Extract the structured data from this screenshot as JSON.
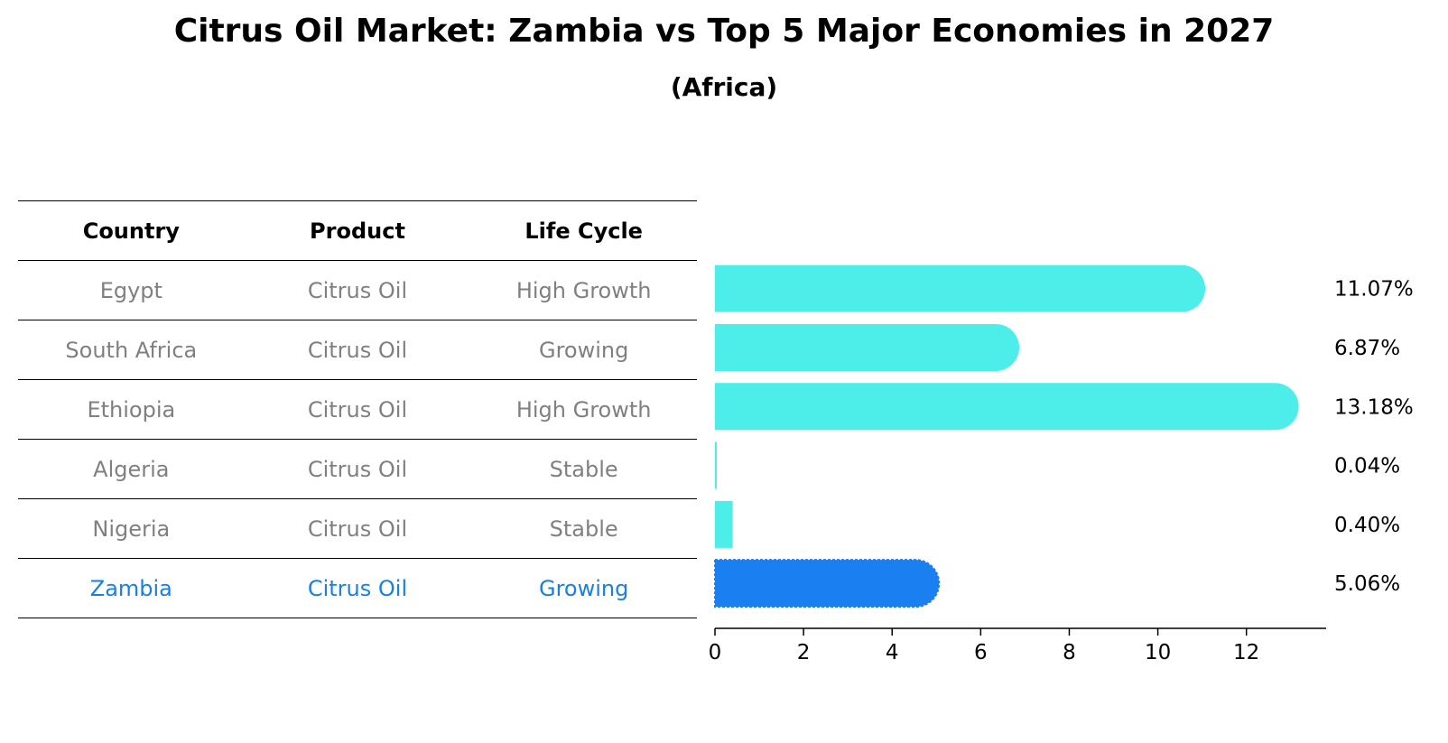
{
  "title": "Citrus Oil Market: Zambia vs Top 5 Major Economies in 2027",
  "subtitle": "(Africa)",
  "table": {
    "headers": [
      "Country",
      "Product",
      "Life Cycle"
    ],
    "rows": [
      {
        "country": "Egypt",
        "product": "Citrus Oil",
        "life_cycle": "High Growth",
        "highlight": false
      },
      {
        "country": "South Africa",
        "product": "Citrus Oil",
        "life_cycle": "Growing",
        "highlight": false
      },
      {
        "country": "Ethiopia",
        "product": "Citrus Oil",
        "life_cycle": "High Growth",
        "highlight": false
      },
      {
        "country": "Algeria",
        "product": "Citrus Oil",
        "life_cycle": "Stable",
        "highlight": false
      },
      {
        "country": "Nigeria",
        "product": "Citrus Oil",
        "life_cycle": "Stable",
        "highlight": false
      },
      {
        "country": "Zambia",
        "product": "Citrus Oil",
        "life_cycle": "Growing",
        "highlight": true
      }
    ]
  },
  "colors": {
    "bar": "#4deeea",
    "highlight": "#1a80f2",
    "highlight_text": "#1a80e0",
    "muted_text": "#808080"
  },
  "chart_data": {
    "type": "bar",
    "orientation": "horizontal",
    "categories": [
      "Egypt",
      "South Africa",
      "Ethiopia",
      "Algeria",
      "Nigeria",
      "Zambia"
    ],
    "values": [
      11.07,
      6.87,
      13.18,
      0.04,
      0.4,
      5.06
    ],
    "value_labels": [
      "11.07%",
      "6.87%",
      "13.18%",
      "0.04%",
      "0.40%",
      "5.06%"
    ],
    "xlim": [
      0,
      13.8
    ],
    "xticks": [
      0,
      2,
      4,
      6,
      8,
      10,
      12
    ],
    "grid": false,
    "highlight_category": "Zambia"
  }
}
